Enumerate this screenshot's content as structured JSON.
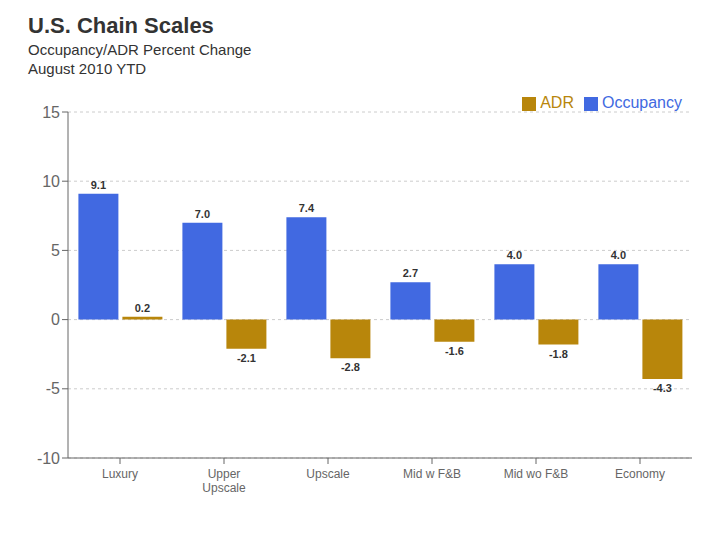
{
  "chart_data": {
    "type": "bar",
    "title": "U.S. Chain Scales",
    "subtitle": "Occupancy/ADR Percent Change\nAugust 2010 YTD",
    "categories": [
      "Luxury",
      "Upper\nUpscale",
      "Upscale",
      "Mid w F&B",
      "Mid wo F&B",
      "Economy"
    ],
    "series": [
      {
        "name": "Occupancy",
        "color": "#4169e1",
        "values": [
          9.1,
          7.0,
          7.4,
          2.7,
          4.0,
          4.0
        ],
        "value_labels": [
          "9.1",
          "7.0",
          "7.4",
          "2.7",
          "4.0",
          "4.0"
        ]
      },
      {
        "name": "ADR",
        "color": "#b8860b",
        "values": [
          0.2,
          -2.1,
          -2.8,
          -1.6,
          -1.8,
          -4.3
        ],
        "value_labels": [
          "0.2",
          "-2.1",
          "-2.8",
          "-1.6",
          "-1.8",
          "-4.3"
        ]
      }
    ],
    "ylim": [
      -10,
      15
    ],
    "yticks": [
      -10,
      -5,
      0,
      5,
      10,
      15
    ],
    "grid": true,
    "legend": "upper right",
    "data_labels": true
  }
}
